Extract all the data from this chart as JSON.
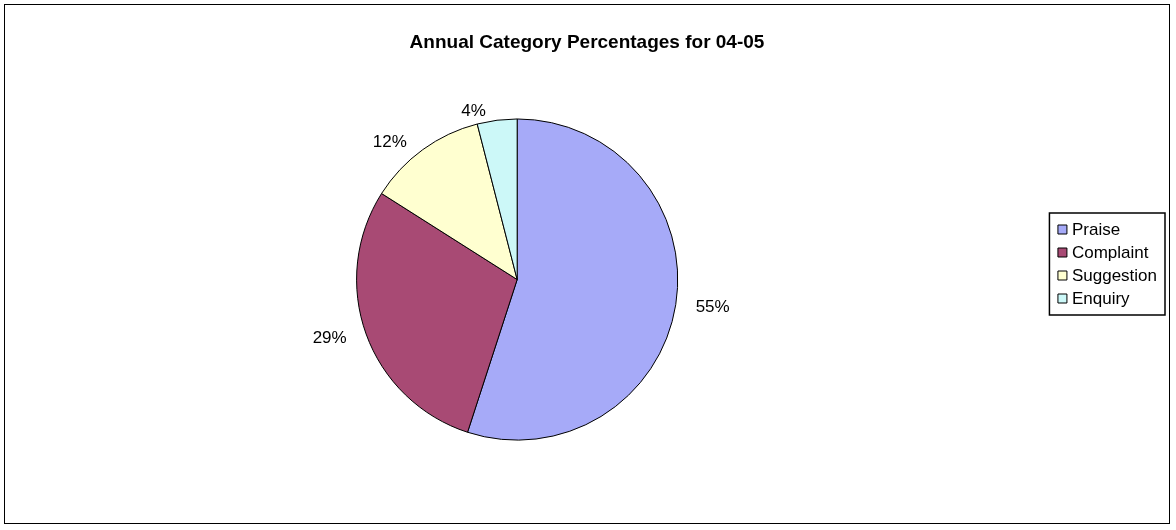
{
  "chart_data": {
    "type": "pie",
    "title": "Annual Category Percentages for 04-05",
    "categories": [
      "Praise",
      "Complaint",
      "Suggestion",
      "Enquiry"
    ],
    "values": [
      55,
      29,
      12,
      4
    ],
    "value_labels": [
      "55%",
      "29%",
      "12%",
      "4%"
    ],
    "colors": [
      "#a6aaf8",
      "#a84a74",
      "#ffffd0",
      "#ccf8f8"
    ],
    "legend": "right"
  }
}
